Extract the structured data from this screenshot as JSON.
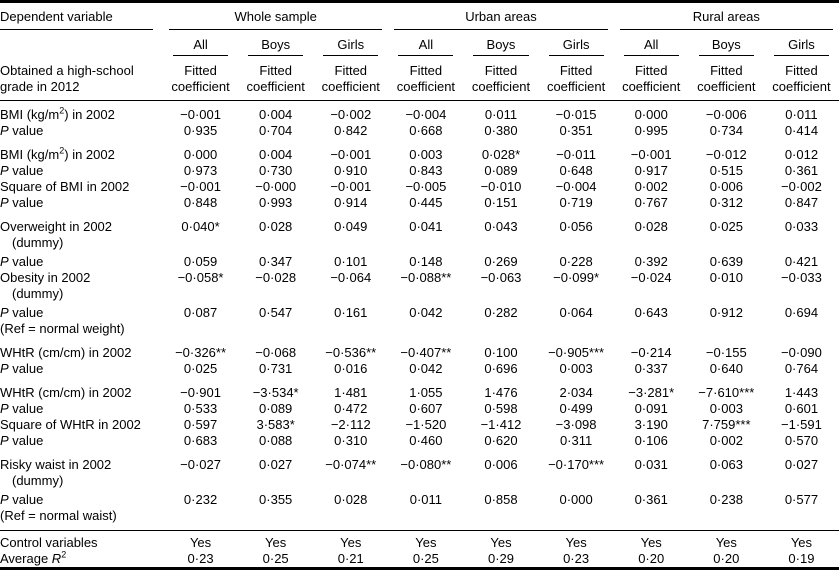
{
  "table": {
    "dependent_variable_header": "Dependent variable",
    "groups": [
      {
        "label": "Whole sample",
        "cols": [
          "All",
          "Boys",
          "Girls"
        ]
      },
      {
        "label": "Urban areas",
        "cols": [
          "All",
          "Boys",
          "Girls"
        ]
      },
      {
        "label": "Rural areas",
        "cols": [
          "All",
          "Boys",
          "Girls"
        ]
      }
    ],
    "row_header_line1": "Obtained a high-school",
    "row_header_line2": "grade in 2012",
    "subcol_label": "Fitted coefficient",
    "sections": [
      {
        "rows": [
          {
            "label": [
              [
                "BMI (kg/m",
                ""
              ],
              [
                "2",
                "sup"
              ],
              [
                ") in 2002",
                ""
              ]
            ],
            "values": [
              "−0·001",
              "0·004",
              "−0·002",
              "−0·004",
              "0·011",
              "−0·015",
              "0·000",
              "−0·006",
              "0·011"
            ]
          },
          {
            "label": [
              [
                "P",
                "i"
              ],
              [
                " value",
                ""
              ]
            ],
            "values": [
              "0·935",
              "0·704",
              "0·842",
              "0·668",
              "0·380",
              "0·351",
              "0·995",
              "0·734",
              "0·414"
            ]
          }
        ]
      },
      {
        "rows": [
          {
            "label": [
              [
                "BMI (kg/m",
                ""
              ],
              [
                "2",
                "sup"
              ],
              [
                ") in 2002",
                ""
              ]
            ],
            "values": [
              "0·000",
              "0·004",
              "−0·001",
              "0·003",
              "0·028*",
              "−0·011",
              "−0·001",
              "−0·012",
              "0·012"
            ]
          },
          {
            "label": [
              [
                "P",
                "i"
              ],
              [
                " value",
                ""
              ]
            ],
            "values": [
              "0·973",
              "0·730",
              "0·910",
              "0·843",
              "0·089",
              "0·648",
              "0·917",
              "0·515",
              "0·361"
            ]
          },
          {
            "label": [
              [
                "Square of BMI in 2002",
                ""
              ]
            ],
            "values": [
              "−0·001",
              "−0·000",
              "−0·001",
              "−0·005",
              "−0·010",
              "−0·004",
              "0·002",
              "0·006",
              "−0·002"
            ]
          },
          {
            "label": [
              [
                "P",
                "i"
              ],
              [
                " value",
                ""
              ]
            ],
            "values": [
              "0·848",
              "0·993",
              "0·914",
              "0·445",
              "0·151",
              "0·719",
              "0·767",
              "0·312",
              "0·847"
            ]
          }
        ]
      },
      {
        "rows": [
          {
            "label": [
              [
                "Overweight in 2002",
                ""
              ]
            ],
            "label2": "(dummy)",
            "values": [
              "0·040*",
              "0·028",
              "0·049",
              "0·041",
              "0·043",
              "0·056",
              "0·028",
              "0·025",
              "0·033"
            ]
          },
          {
            "label": [
              [
                "P",
                "i"
              ],
              [
                " value",
                ""
              ]
            ],
            "values": [
              "0·059",
              "0·347",
              "0·101",
              "0·148",
              "0·269",
              "0·228",
              "0·392",
              "0·639",
              "0·421"
            ]
          },
          {
            "label": [
              [
                "Obesity in 2002",
                ""
              ]
            ],
            "label2": "(dummy)",
            "values": [
              "−0·058*",
              "−0·028",
              "−0·064",
              "−0·088**",
              "−0·063",
              "−0·099*",
              "−0·024",
              "0·010",
              "−0·033"
            ]
          },
          {
            "label": [
              [
                "P",
                "i"
              ],
              [
                " value",
                ""
              ]
            ],
            "values": [
              "0·087",
              "0·547",
              "0·161",
              "0·042",
              "0·282",
              "0·064",
              "0·643",
              "0·912",
              "0·694"
            ]
          },
          {
            "label": [
              [
                "(Ref = normal weight)",
                ""
              ]
            ],
            "values": []
          }
        ]
      },
      {
        "rows": [
          {
            "label": [
              [
                "WHtR (cm/cm) in 2002",
                ""
              ]
            ],
            "values": [
              "−0·326**",
              "−0·068",
              "−0·536**",
              "−0·407**",
              "0·100",
              "−0·905***",
              "−0·214",
              "−0·155",
              "−0·090"
            ]
          },
          {
            "label": [
              [
                "P",
                "i"
              ],
              [
                " value",
                ""
              ]
            ],
            "values": [
              "0·025",
              "0·731",
              "0·016",
              "0·042",
              "0·696",
              "0·003",
              "0·337",
              "0·640",
              "0·764"
            ]
          }
        ]
      },
      {
        "rows": [
          {
            "label": [
              [
                "WHtR (cm/cm) in 2002",
                ""
              ]
            ],
            "values": [
              "−0·901",
              "−3·534*",
              "1·481",
              "1·055",
              "1·476",
              "2·034",
              "−3·281*",
              "−7·610***",
              "1·443"
            ]
          },
          {
            "label": [
              [
                "P",
                "i"
              ],
              [
                " value",
                ""
              ]
            ],
            "values": [
              "0·533",
              "0·089",
              "0·472",
              "0·607",
              "0·598",
              "0·499",
              "0·091",
              "0·003",
              "0·601"
            ]
          },
          {
            "label": [
              [
                "Square of WHtR in 2002",
                ""
              ]
            ],
            "values": [
              "0·597",
              "3·583*",
              "−2·112",
              "−1·520",
              "−1·412",
              "−3·098",
              "3·190",
              "7·759***",
              "−1·591"
            ]
          },
          {
            "label": [
              [
                "P",
                "i"
              ],
              [
                " value",
                ""
              ]
            ],
            "values": [
              "0·683",
              "0·088",
              "0·310",
              "0·460",
              "0·620",
              "0·311",
              "0·106",
              "0·002",
              "0·570"
            ]
          }
        ]
      },
      {
        "rows": [
          {
            "label": [
              [
                "Risky waist in 2002",
                ""
              ]
            ],
            "label2": "(dummy)",
            "values": [
              "−0·027",
              "0·027",
              "−0·074**",
              "−0·080**",
              "0·006",
              "−0·170***",
              "0·031",
              "0·063",
              "0·027"
            ]
          },
          {
            "label": [
              [
                "P",
                "i"
              ],
              [
                " value",
                ""
              ]
            ],
            "values": [
              "0·232",
              "0·355",
              "0·028",
              "0·011",
              "0·858",
              "0·000",
              "0·361",
              "0·238",
              "0·577"
            ]
          },
          {
            "label": [
              [
                "(Ref = normal waist)",
                ""
              ]
            ],
            "values": []
          }
        ]
      },
      {
        "divider_above": true,
        "rows": [
          {
            "label": [
              [
                "Control variables",
                ""
              ]
            ],
            "values": [
              "Yes",
              "Yes",
              "Yes",
              "Yes",
              "Yes",
              "Yes",
              "Yes",
              "Yes",
              "Yes"
            ]
          },
          {
            "label": [
              [
                "Average ",
                ""
              ],
              [
                "R",
                "i"
              ],
              [
                "2",
                "sup"
              ]
            ],
            "values": [
              "0·23",
              "0·25",
              "0·21",
              "0·25",
              "0·29",
              "0·23",
              "0·20",
              "0·20",
              "0·19"
            ]
          }
        ]
      }
    ]
  }
}
